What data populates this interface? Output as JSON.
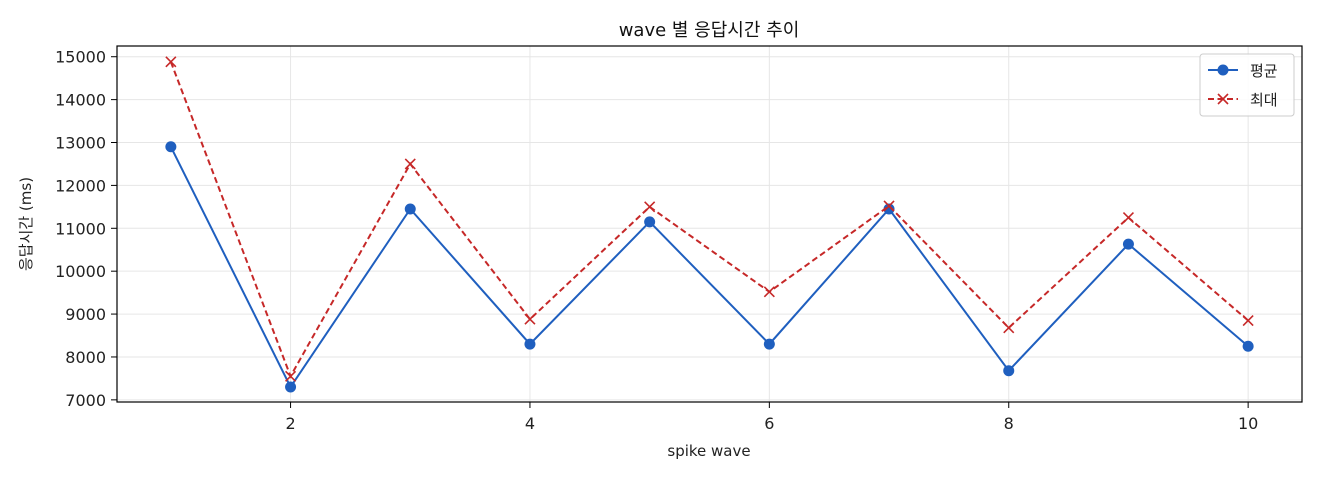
{
  "chart_data": {
    "type": "line",
    "title": "wave 별 응답시간 추이",
    "xlabel": "spike wave",
    "ylabel": "응답시간 (ms)",
    "x": [
      1,
      2,
      3,
      4,
      5,
      6,
      7,
      8,
      9,
      10
    ],
    "xlim": [
      0.55,
      10.45
    ],
    "ylim": [
      6950,
      15250
    ],
    "x_ticks": [
      2,
      4,
      6,
      8,
      10
    ],
    "y_ticks": [
      7000,
      8000,
      9000,
      10000,
      11000,
      12000,
      13000,
      14000,
      15000
    ],
    "grid": true,
    "legend_position": "top-right",
    "series": [
      {
        "name": "평균",
        "color": "#1f5fbf",
        "line_style": "solid",
        "marker": "circle",
        "values": [
          12900,
          7300,
          11450,
          8300,
          11150,
          8300,
          11450,
          7680,
          10630,
          8250
        ]
      },
      {
        "name": "최대",
        "color": "#c62828",
        "line_style": "dashed",
        "marker": "x",
        "values": [
          14880,
          7550,
          12500,
          8880,
          11500,
          9520,
          11520,
          8680,
          11250,
          8850
        ]
      }
    ]
  }
}
